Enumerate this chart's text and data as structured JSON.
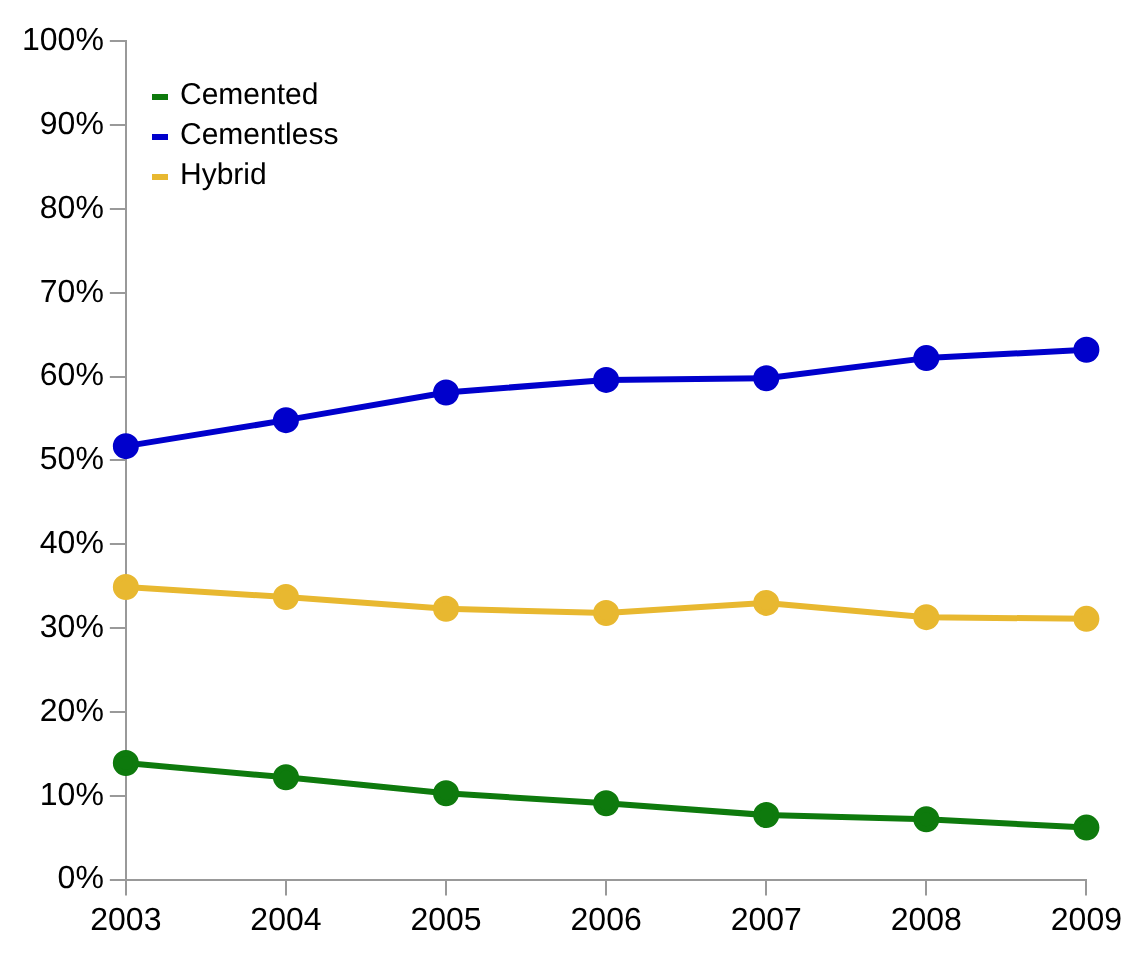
{
  "chart_data": {
    "type": "line",
    "categories": [
      "2003",
      "2004",
      "2005",
      "2006",
      "2007",
      "2008",
      "2009"
    ],
    "series": [
      {
        "name": "Cemented",
        "color": "#0e7a0d",
        "values": [
          13.9,
          12.2,
          10.3,
          9.1,
          7.7,
          7.2,
          6.2
        ]
      },
      {
        "name": "Cementless",
        "color": "#0000cc",
        "values": [
          51.7,
          54.8,
          58.1,
          59.6,
          59.8,
          62.2,
          63.2
        ]
      },
      {
        "name": "Hybrid",
        "color": "#e8b830",
        "values": [
          34.9,
          33.7,
          32.3,
          31.8,
          33.0,
          31.3,
          31.1
        ]
      }
    ],
    "ylim": [
      0,
      100
    ],
    "yticks": [
      {
        "value": 0,
        "label": "0%"
      },
      {
        "value": 10,
        "label": "10%"
      },
      {
        "value": 20,
        "label": "20%"
      },
      {
        "value": 30,
        "label": "30%"
      },
      {
        "value": 40,
        "label": "40%"
      },
      {
        "value": 50,
        "label": "50%"
      },
      {
        "value": 60,
        "label": "60%"
      },
      {
        "value": 70,
        "label": "70%"
      },
      {
        "value": 80,
        "label": "80%"
      },
      {
        "value": 90,
        "label": "90%"
      },
      {
        "value": 100,
        "label": "100%"
      }
    ],
    "grid": false,
    "legend": "top left",
    "marker": "circle",
    "line_style": "solid"
  }
}
